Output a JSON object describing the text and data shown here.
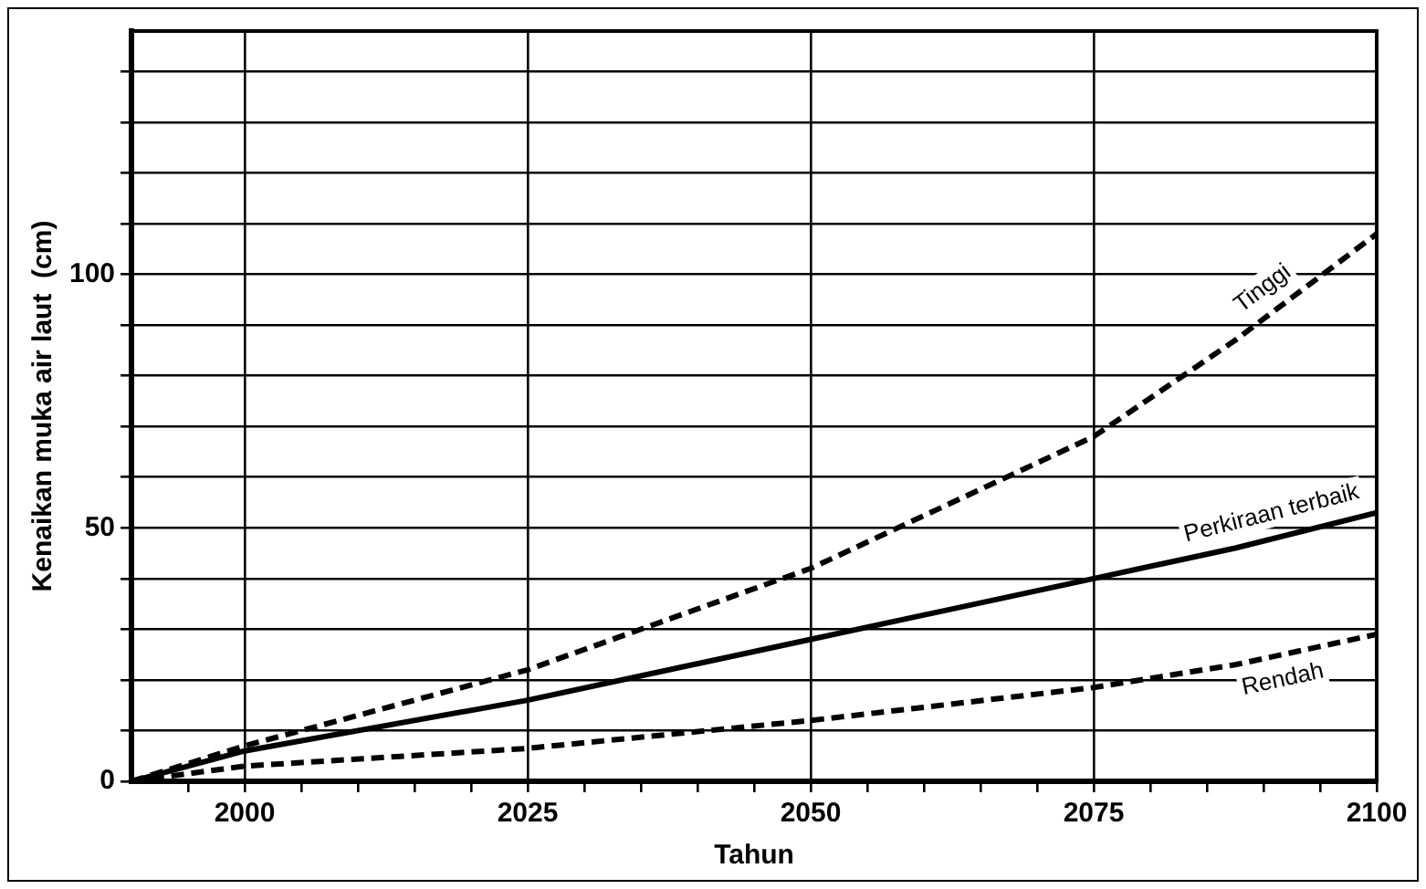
{
  "chart_data": {
    "type": "line",
    "xlabel": "Tahun",
    "ylabel": "Kenaikan muka air laut  (cm)",
    "xlim": [
      1990,
      2100
    ],
    "ylim": [
      0,
      148
    ],
    "xticks": [
      {
        "value": 1995,
        "label": null
      },
      2000,
      {
        "value": 2005,
        "label": null
      },
      {
        "value": 2010,
        "label": null
      },
      {
        "value": 2015,
        "label": null
      },
      {
        "value": 2020,
        "label": null
      },
      2025,
      {
        "value": 2030,
        "label": null
      },
      {
        "value": 2035,
        "label": null
      },
      {
        "value": 2040,
        "label": null
      },
      {
        "value": 2045,
        "label": null
      },
      2050,
      {
        "value": 2055,
        "label": null
      },
      {
        "value": 2060,
        "label": null
      },
      {
        "value": 2065,
        "label": null
      },
      {
        "value": 2070,
        "label": null
      },
      2075,
      {
        "value": 2080,
        "label": null
      },
      {
        "value": 2085,
        "label": null
      },
      {
        "value": 2090,
        "label": null
      },
      {
        "value": 2095,
        "label": null
      },
      2100
    ],
    "yticks": [
      0,
      {
        "value": 10,
        "label": null
      },
      {
        "value": 20,
        "label": null
      },
      {
        "value": 30,
        "label": null
      },
      {
        "value": 40,
        "label": null
      },
      50,
      {
        "value": 60,
        "label": null
      },
      {
        "value": 70,
        "label": null
      },
      {
        "value": 80,
        "label": null
      },
      {
        "value": 90,
        "label": null
      },
      100,
      {
        "value": 110,
        "label": null
      },
      {
        "value": 120,
        "label": null
      },
      {
        "value": 130,
        "label": null
      },
      {
        "value": 140,
        "label": null
      }
    ],
    "grid": true,
    "legend": false,
    "marker": "none",
    "x": [
      1990,
      2000,
      2025,
      2050,
      2075,
      2087.5,
      2100
    ],
    "series": [
      {
        "name": "Tinggi",
        "color": "#000000",
        "line_style": "dashed",
        "values": [
          0,
          7,
          22,
          42,
          68,
          87,
          108
        ]
      },
      {
        "name": "Perkiraan terbaik",
        "color": "#000000",
        "line_style": "solid",
        "values": [
          0,
          6,
          16,
          28,
          40,
          46,
          53
        ]
      },
      {
        "name": "Rendah",
        "color": "#000000",
        "line_style": "dashed",
        "values": [
          0,
          3,
          6.5,
          12,
          18.5,
          23,
          29
        ]
      }
    ]
  }
}
